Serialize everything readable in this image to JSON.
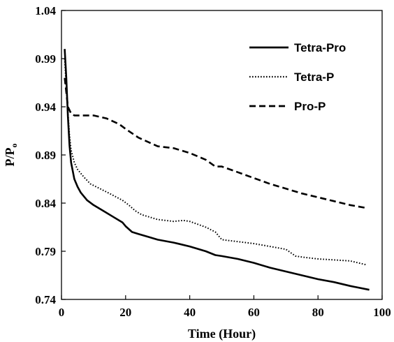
{
  "chart_data": {
    "type": "line",
    "title": "",
    "xlabel": "Time (Hour)",
    "ylabel": "P/P",
    "ylabel_subscript": "o",
    "xlim": [
      0,
      100
    ],
    "ylim": [
      0.74,
      1.04
    ],
    "xticks": [
      0,
      20,
      40,
      60,
      80,
      100
    ],
    "yticks": [
      0.74,
      0.79,
      0.84,
      0.89,
      0.94,
      0.99,
      1.04
    ],
    "xtick_labels": [
      "0",
      "20",
      "40",
      "60",
      "80",
      "100"
    ],
    "ytick_labels": [
      "0.74",
      "0.79",
      "0.84",
      "0.89",
      "0.94",
      "0.99",
      "1.04"
    ],
    "grid": false,
    "legend_position": "top-right",
    "series": [
      {
        "name": "Tetra-Pro",
        "style": "solid",
        "color": "#000000",
        "points": [
          [
            1,
            1.0
          ],
          [
            1.5,
            0.97
          ],
          [
            2,
            0.93
          ],
          [
            2.5,
            0.9
          ],
          [
            3,
            0.882
          ],
          [
            4,
            0.865
          ],
          [
            5,
            0.857
          ],
          [
            6,
            0.851
          ],
          [
            8,
            0.843
          ],
          [
            10,
            0.838
          ],
          [
            13,
            0.832
          ],
          [
            16,
            0.826
          ],
          [
            19,
            0.82
          ],
          [
            20,
            0.816
          ],
          [
            22,
            0.81
          ],
          [
            24,
            0.808
          ],
          [
            27,
            0.805
          ],
          [
            30,
            0.802
          ],
          [
            35,
            0.799
          ],
          [
            40,
            0.795
          ],
          [
            45,
            0.79
          ],
          [
            48,
            0.786
          ],
          [
            50,
            0.785
          ],
          [
            55,
            0.782
          ],
          [
            60,
            0.778
          ],
          [
            65,
            0.773
          ],
          [
            70,
            0.769
          ],
          [
            75,
            0.765
          ],
          [
            80,
            0.761
          ],
          [
            85,
            0.758
          ],
          [
            90,
            0.754
          ],
          [
            96,
            0.75
          ]
        ]
      },
      {
        "name": "Tetra-P",
        "style": "dotted",
        "color": "#000000",
        "points": [
          [
            1,
            0.99
          ],
          [
            1.5,
            0.96
          ],
          [
            2,
            0.935
          ],
          [
            2.5,
            0.91
          ],
          [
            3,
            0.895
          ],
          [
            4,
            0.882
          ],
          [
            5,
            0.875
          ],
          [
            7,
            0.867
          ],
          [
            9,
            0.86
          ],
          [
            12,
            0.855
          ],
          [
            15,
            0.85
          ],
          [
            19,
            0.843
          ],
          [
            21,
            0.838
          ],
          [
            23,
            0.832
          ],
          [
            25,
            0.828
          ],
          [
            30,
            0.823
          ],
          [
            35,
            0.821
          ],
          [
            38,
            0.822
          ],
          [
            40,
            0.821
          ],
          [
            45,
            0.815
          ],
          [
            48,
            0.81
          ],
          [
            50,
            0.802
          ],
          [
            55,
            0.8
          ],
          [
            60,
            0.798
          ],
          [
            65,
            0.795
          ],
          [
            70,
            0.792
          ],
          [
            73,
            0.785
          ],
          [
            75,
            0.784
          ],
          [
            80,
            0.782
          ],
          [
            85,
            0.781
          ],
          [
            90,
            0.78
          ],
          [
            95,
            0.776
          ]
        ]
      },
      {
        "name": "Pro-P",
        "style": "dashed",
        "color": "#000000",
        "points": [
          [
            1,
            0.97
          ],
          [
            2,
            0.94
          ],
          [
            3,
            0.933
          ],
          [
            4,
            0.931
          ],
          [
            6,
            0.931
          ],
          [
            10,
            0.931
          ],
          [
            14,
            0.928
          ],
          [
            18,
            0.922
          ],
          [
            20,
            0.917
          ],
          [
            24,
            0.908
          ],
          [
            28,
            0.902
          ],
          [
            30,
            0.899
          ],
          [
            35,
            0.897
          ],
          [
            40,
            0.892
          ],
          [
            45,
            0.885
          ],
          [
            48,
            0.878
          ],
          [
            50,
            0.878
          ],
          [
            55,
            0.872
          ],
          [
            60,
            0.866
          ],
          [
            65,
            0.86
          ],
          [
            70,
            0.855
          ],
          [
            75,
            0.85
          ],
          [
            80,
            0.846
          ],
          [
            85,
            0.842
          ],
          [
            90,
            0.838
          ],
          [
            95,
            0.835
          ]
        ]
      }
    ]
  }
}
